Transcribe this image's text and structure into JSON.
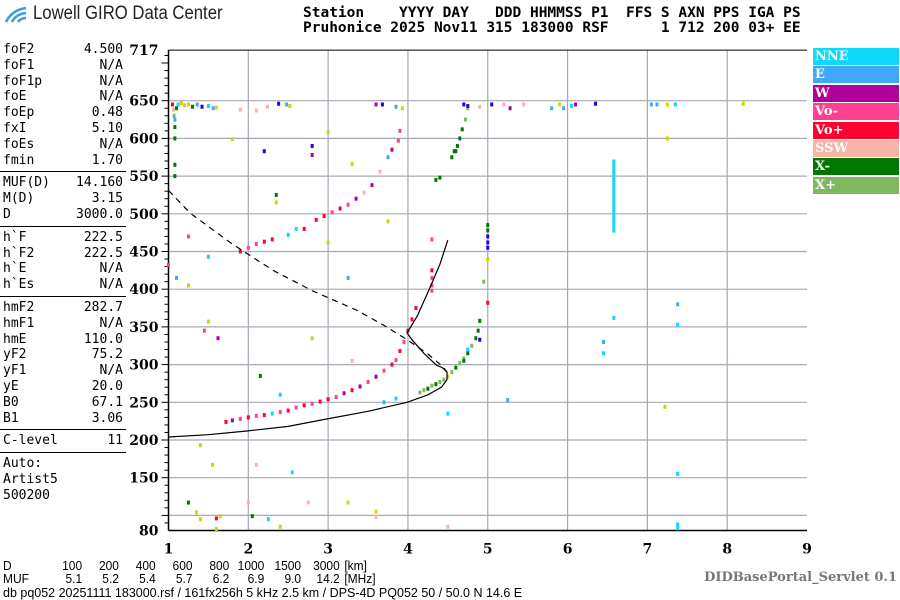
{
  "header": {
    "logo_text": "Lowell GIRO Data Center",
    "line1": "Station    YYYY DAY   DDD HHMMSS P1  FFS S AXN PPS IGA PS",
    "line2": "Pruhonice 2025 Nov11 315 183000 RSF      1 712 200 03+ EE"
  },
  "params": {
    "group1": [
      {
        "label": "foF2",
        "value": "4.500"
      },
      {
        "label": "foF1",
        "value": "N/A"
      },
      {
        "label": "foF1p",
        "value": "N/A"
      },
      {
        "label": "foE",
        "value": "N/A"
      },
      {
        "label": "foEp",
        "value": "0.48"
      },
      {
        "label": "fxI",
        "value": "5.10"
      },
      {
        "label": "foEs",
        "value": "N/A"
      },
      {
        "label": "fmin",
        "value": "1.70"
      }
    ],
    "group2": [
      {
        "label": "MUF(D)",
        "value": "14.160"
      },
      {
        "label": "M(D)",
        "value": "3.15"
      },
      {
        "label": "D",
        "value": "3000.0"
      }
    ],
    "group3": [
      {
        "label": "h`F",
        "value": "222.5"
      },
      {
        "label": "h`F2",
        "value": "222.5"
      },
      {
        "label": "h`E",
        "value": "N/A"
      },
      {
        "label": "h`Es",
        "value": "N/A"
      }
    ],
    "group4": [
      {
        "label": "hmF2",
        "value": "282.7"
      },
      {
        "label": "hmF1",
        "value": "N/A"
      },
      {
        "label": "hmE",
        "value": "110.0"
      },
      {
        "label": "yF2",
        "value": "75.2"
      },
      {
        "label": "yF1",
        "value": "N/A"
      },
      {
        "label": "yE",
        "value": "20.0"
      },
      {
        "label": "B0",
        "value": "67.1"
      },
      {
        "label": "B1",
        "value": "3.06"
      }
    ],
    "group5": [
      {
        "label": "C-level",
        "value": "11"
      }
    ],
    "auto": [
      "Auto:",
      "Artist5",
      "500200"
    ]
  },
  "legend": [
    {
      "label": "NNE",
      "color": "#10d8f8"
    },
    {
      "label": "E",
      "color": "#40a8f8"
    },
    {
      "label": "W",
      "color": "#b0009c"
    },
    {
      "label": "Vo-",
      "color": "#ff4090"
    },
    {
      "label": "Vo+",
      "color": "#ff0030"
    },
    {
      "label": "SSW",
      "color": "#f8b4a8"
    },
    {
      "label": "X-",
      "color": "#007800"
    },
    {
      "label": "X+",
      "color": "#80b860"
    }
  ],
  "other_colors": {
    "yellow": "#d4d400",
    "blue": "#2000e8"
  },
  "dmuf": {
    "d_label": "D",
    "d_values": [
      "100",
      "200",
      "400",
      "600",
      "800",
      "1000",
      "1500",
      "3000",
      "[km]"
    ],
    "muf_label": "MUF",
    "muf_values": [
      "5.1",
      "5.2",
      "5.4",
      "5.7",
      "6.2",
      "6.9",
      "9.0",
      "14.2",
      "[MHz]"
    ]
  },
  "footer": {
    "info": "db pq052 20251111 183000.rsf / 161fx256h 5 kHz 2.5 km / DPS-4D PQ052 50 / 50.0 N 14.6 E",
    "servlet": "DIDBasePortal_Servlet 0.1"
  },
  "chart_data": {
    "type": "scatter",
    "xlim": [
      1,
      9
    ],
    "ylim": [
      80,
      717
    ],
    "x_ticks": [
      "1",
      "2",
      "3",
      "4",
      "5",
      "6",
      "7",
      "8",
      "9"
    ],
    "y_ticks": [
      "717",
      "650",
      "600",
      "550",
      "500",
      "450",
      "400",
      "350",
      "300",
      "250",
      "200",
      "150",
      "80"
    ],
    "y_grid": [
      650,
      600,
      550,
      500,
      450,
      400,
      350,
      300,
      250,
      200,
      150,
      100
    ],
    "x_grid": [
      2,
      3,
      4,
      5,
      6,
      7,
      8
    ],
    "grid": true,
    "legend_placement": "right",
    "profile_curve": [
      [
        1.0,
        204
      ],
      [
        1.5,
        207
      ],
      [
        1.98,
        212
      ],
      [
        2.5,
        218
      ],
      [
        2.94,
        227
      ],
      [
        3.5,
        238
      ],
      [
        3.99,
        250
      ],
      [
        4.25,
        260
      ],
      [
        4.42,
        270
      ],
      [
        4.49,
        280
      ],
      [
        4.49,
        290
      ],
      [
        4.43,
        296
      ],
      [
        4.36,
        299
      ],
      [
        4.2,
        315
      ],
      [
        4.05,
        333
      ],
      [
        3.99,
        342
      ],
      [
        4.12,
        365
      ],
      [
        4.28,
        403
      ],
      [
        4.4,
        433
      ],
      [
        4.5,
        465
      ]
    ],
    "dashed_curve": [
      [
        1.0,
        531
      ],
      [
        1.27,
        501
      ],
      [
        1.8,
        460
      ],
      [
        2.31,
        425
      ],
      [
        2.8,
        398
      ],
      [
        3.36,
        372
      ],
      [
        3.7,
        352
      ],
      [
        3.99,
        333
      ],
      [
        4.25,
        314
      ],
      [
        4.44,
        297
      ],
      [
        4.49,
        290
      ]
    ],
    "bars": [
      {
        "f": 6.58,
        "h1": 475,
        "h2": 572,
        "color": "NNE"
      }
    ],
    "points": [
      [
        1.72,
        224,
        "Vo+"
      ],
      [
        1.8,
        226,
        "W"
      ],
      [
        1.9,
        228,
        "Vo-"
      ],
      [
        2.0,
        230,
        "Vo+"
      ],
      [
        2.1,
        232,
        "Vo-"
      ],
      [
        2.2,
        233,
        "Vo+"
      ],
      [
        2.3,
        235,
        "NNE"
      ],
      [
        2.4,
        237,
        "Vo-"
      ],
      [
        2.5,
        239,
        "Vo+"
      ],
      [
        2.6,
        243,
        "Vo-"
      ],
      [
        2.7,
        246,
        "Vo+"
      ],
      [
        2.8,
        248,
        "Vo-"
      ],
      [
        2.9,
        251,
        "Vo+"
      ],
      [
        3.0,
        254,
        "Vo+"
      ],
      [
        3.1,
        257,
        "Vo-"
      ],
      [
        3.2,
        262,
        "W"
      ],
      [
        3.3,
        266,
        "Vo+"
      ],
      [
        3.4,
        271,
        "W"
      ],
      [
        3.5,
        277,
        "Vo-"
      ],
      [
        3.6,
        284,
        "W"
      ],
      [
        3.7,
        292,
        "Vo-"
      ],
      [
        3.8,
        300,
        "Vo+"
      ],
      [
        3.85,
        306,
        "Vo-"
      ],
      [
        3.9,
        318,
        "Vo+"
      ],
      [
        3.95,
        330,
        "Vo-"
      ],
      [
        4.0,
        345,
        "Vo+"
      ],
      [
        4.05,
        360,
        "Vo+"
      ],
      [
        4.1,
        375,
        "Vo+"
      ],
      [
        1.9,
        450,
        "Vo+"
      ],
      [
        2.0,
        455,
        "Vo-"
      ],
      [
        2.1,
        460,
        "Vo-"
      ],
      [
        2.2,
        463,
        "Vo+"
      ],
      [
        2.3,
        466,
        "Vo+"
      ],
      [
        2.5,
        472,
        "NNE"
      ],
      [
        2.7,
        480,
        "Vo+"
      ],
      [
        2.85,
        492,
        "Vo+"
      ],
      [
        2.95,
        497,
        "Vo+"
      ],
      [
        3.05,
        502,
        "Vo-"
      ],
      [
        3.15,
        507,
        "Vo+"
      ],
      [
        3.25,
        512,
        "Vo-"
      ],
      [
        3.35,
        520,
        "W"
      ],
      [
        3.45,
        528,
        "SSW"
      ],
      [
        3.55,
        538,
        "W"
      ],
      [
        3.65,
        556,
        "SSW"
      ],
      [
        3.75,
        575,
        "E"
      ],
      [
        3.8,
        585,
        "W"
      ],
      [
        3.88,
        597,
        "Vo-"
      ],
      [
        4.3,
        466,
        "Vo-"
      ],
      [
        4.3,
        425,
        "Vo+"
      ],
      [
        4.3,
        415,
        "Vo-"
      ],
      [
        4.3,
        405,
        "Vo-"
      ],
      [
        4.3,
        398,
        "Vo-"
      ],
      [
        5.0,
        382,
        "Vo+"
      ],
      [
        4.15,
        263,
        "X+"
      ],
      [
        4.2,
        266,
        "X+"
      ],
      [
        4.25,
        268,
        "X-"
      ],
      [
        4.3,
        272,
        "X+"
      ],
      [
        4.35,
        274,
        "X-"
      ],
      [
        4.4,
        277,
        "X+"
      ],
      [
        4.45,
        280,
        "X+"
      ],
      [
        4.5,
        284,
        "yellow"
      ],
      [
        4.55,
        290,
        "X+"
      ],
      [
        4.6,
        296,
        "X-"
      ],
      [
        4.65,
        302,
        "X+"
      ],
      [
        4.7,
        308,
        "X+"
      ],
      [
        4.75,
        315,
        "X-"
      ],
      [
        4.8,
        325,
        "X+"
      ],
      [
        4.85,
        335,
        "X-"
      ],
      [
        4.88,
        345,
        "X-"
      ],
      [
        4.9,
        358,
        "X-"
      ],
      [
        4.9,
        333,
        "blue"
      ],
      [
        4.35,
        545,
        "X-"
      ],
      [
        4.4,
        548,
        "X-"
      ],
      [
        4.55,
        575,
        "X-"
      ],
      [
        4.58,
        583,
        "X-"
      ],
      [
        4.62,
        590,
        "X-"
      ],
      [
        4.65,
        600,
        "X-"
      ],
      [
        4.68,
        612,
        "X-"
      ],
      [
        4.72,
        625,
        "X+"
      ],
      [
        4.75,
        640,
        "X+"
      ],
      [
        5.0,
        485,
        "X-"
      ],
      [
        5.0,
        478,
        "X-"
      ],
      [
        5.0,
        470,
        "blue"
      ],
      [
        5.0,
        462,
        "blue"
      ],
      [
        5.0,
        455,
        "blue"
      ],
      [
        5.0,
        440,
        "yellow"
      ],
      [
        4.95,
        410,
        "X+"
      ],
      [
        1.05,
        645,
        "Vo+"
      ],
      [
        1.06,
        638,
        "SSW"
      ],
      [
        1.07,
        630,
        "X+"
      ],
      [
        1.08,
        625,
        "E"
      ],
      [
        1.1,
        640,
        "X-"
      ],
      [
        1.12,
        645,
        "NNE"
      ],
      [
        1.16,
        647,
        "yellow"
      ],
      [
        1.2,
        644,
        "yellow"
      ],
      [
        1.25,
        645,
        "yellow"
      ],
      [
        1.3,
        642,
        "X-"
      ],
      [
        1.36,
        645,
        "E"
      ],
      [
        1.42,
        642,
        "blue"
      ],
      [
        1.5,
        643,
        "NNE"
      ],
      [
        1.56,
        640,
        "E"
      ],
      [
        1.6,
        641,
        "yellow"
      ],
      [
        1.9,
        638,
        "SSW"
      ],
      [
        2.1,
        637,
        "SSW"
      ],
      [
        2.24,
        642,
        "SSW"
      ],
      [
        2.38,
        646,
        "blue"
      ],
      [
        2.48,
        645,
        "E"
      ],
      [
        2.52,
        643,
        "yellow"
      ],
      [
        3.6,
        645,
        "W"
      ],
      [
        3.68,
        645,
        "blue"
      ],
      [
        3.85,
        642,
        "E"
      ],
      [
        3.93,
        640,
        "yellow"
      ],
      [
        4.7,
        645,
        "blue"
      ],
      [
        4.75,
        643,
        "blue"
      ],
      [
        4.9,
        642,
        "SSW"
      ],
      [
        5.05,
        645,
        "blue"
      ],
      [
        5.2,
        645,
        "SSW"
      ],
      [
        5.28,
        640,
        "W"
      ],
      [
        5.45,
        645,
        "SSW"
      ],
      [
        5.8,
        640,
        "E"
      ],
      [
        5.9,
        645,
        "yellow"
      ],
      [
        5.95,
        640,
        "E"
      ],
      [
        6.05,
        643,
        "NNE"
      ],
      [
        6.1,
        645,
        "W"
      ],
      [
        6.35,
        646,
        "blue"
      ],
      [
        7.05,
        645,
        "E"
      ],
      [
        7.12,
        645,
        "E"
      ],
      [
        7.25,
        645,
        "yellow"
      ],
      [
        7.35,
        645,
        "NNE"
      ],
      [
        8.2,
        646,
        "yellow"
      ],
      [
        1.08,
        615,
        "X-"
      ],
      [
        1.08,
        600,
        "X-"
      ],
      [
        1.08,
        565,
        "X-"
      ],
      [
        1.08,
        550,
        "X-"
      ],
      [
        1.8,
        599,
        "yellow"
      ],
      [
        2.2,
        583,
        "blue"
      ],
      [
        2.8,
        590,
        "blue"
      ],
      [
        2.8,
        578,
        "W"
      ],
      [
        3.0,
        608,
        "yellow"
      ],
      [
        3.3,
        566,
        "yellow"
      ],
      [
        3.9,
        610,
        "Vo-"
      ],
      [
        4.6,
        583,
        "X-"
      ],
      [
        7.25,
        600,
        "yellow"
      ],
      [
        2.35,
        525,
        "X-"
      ],
      [
        2.35,
        515,
        "yellow"
      ],
      [
        1.25,
        470,
        "Vo-"
      ],
      [
        1.0,
        432,
        "Vo-"
      ],
      [
        1.1,
        415,
        "E"
      ],
      [
        1.5,
        443,
        "NNE"
      ],
      [
        1.25,
        405,
        "yellow"
      ],
      [
        2.6,
        480,
        "NNE"
      ],
      [
        3.0,
        462,
        "yellow"
      ],
      [
        3.25,
        415,
        "E"
      ],
      [
        3.75,
        490,
        "yellow"
      ],
      [
        1.5,
        357,
        "yellow"
      ],
      [
        1.45,
        345,
        "Vo-"
      ],
      [
        1.62,
        335,
        "W"
      ],
      [
        2.15,
        285,
        "X-"
      ],
      [
        2.8,
        335,
        "yellow"
      ],
      [
        2.4,
        260,
        "NNE"
      ],
      [
        3.3,
        305,
        "SSW"
      ],
      [
        3.7,
        250,
        "E"
      ],
      [
        3.85,
        255,
        "NNE"
      ],
      [
        4.5,
        235,
        "NNE"
      ],
      [
        5.25,
        253,
        "E"
      ],
      [
        4.7,
        305,
        "X-"
      ],
      [
        4.75,
        320,
        "NNE"
      ],
      [
        6.45,
        330,
        "E"
      ],
      [
        6.45,
        315,
        "NNE"
      ],
      [
        6.58,
        362,
        "NNE"
      ],
      [
        7.22,
        244,
        "yellow"
      ],
      [
        7.38,
        380,
        "E"
      ],
      [
        7.38,
        353,
        "NNE"
      ],
      [
        7.38,
        155,
        "NNE"
      ],
      [
        7.38,
        88,
        "NNE"
      ],
      [
        7.38,
        83,
        "NNE"
      ],
      [
        1.4,
        193,
        "yellow"
      ],
      [
        1.55,
        167,
        "yellow"
      ],
      [
        1.35,
        104,
        "yellow"
      ],
      [
        1.4,
        95,
        "yellow"
      ],
      [
        1.6,
        96,
        "Vo+"
      ],
      [
        1.6,
        82,
        "yellow"
      ],
      [
        1.65,
        99,
        "yellow"
      ],
      [
        2.0,
        117,
        "SSW"
      ],
      [
        2.1,
        167,
        "SSW"
      ],
      [
        2.05,
        99,
        "X-"
      ],
      [
        2.25,
        95,
        "NNE"
      ],
      [
        2.4,
        85,
        "yellow"
      ],
      [
        2.55,
        157,
        "NNE"
      ],
      [
        2.75,
        117,
        "SSW"
      ],
      [
        3.25,
        117,
        "yellow"
      ],
      [
        3.6,
        105,
        "yellow"
      ],
      [
        3.6,
        98,
        "SSW"
      ],
      [
        4.5,
        85,
        "SSW"
      ],
      [
        1.25,
        117,
        "X-"
      ]
    ]
  }
}
